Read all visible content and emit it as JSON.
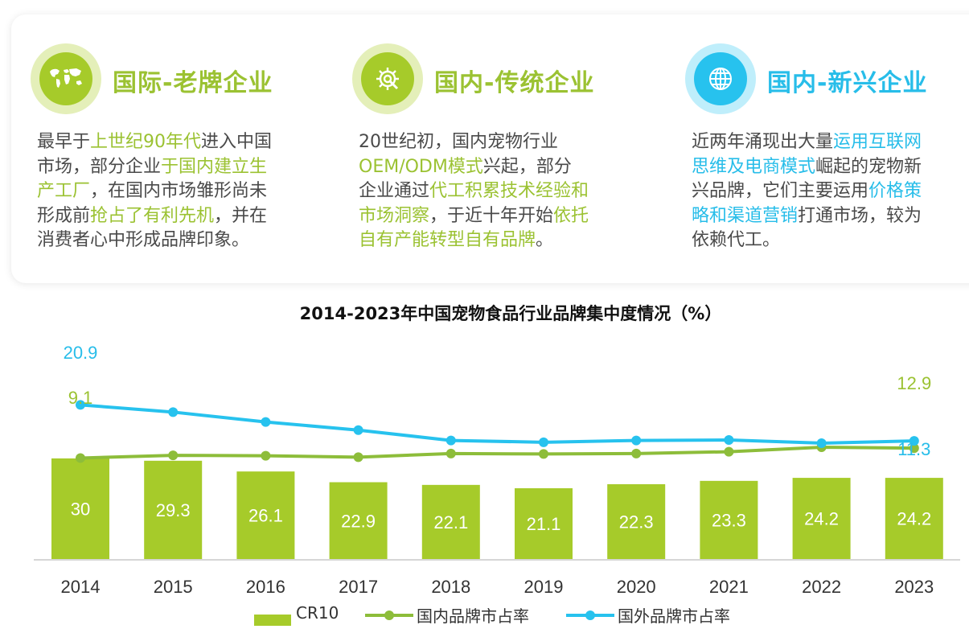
{
  "sections": [
    {
      "icon": "world-map-icon",
      "color": "#9bc232",
      "title": "国际-老牌企业",
      "lines": [
        [
          {
            "t": "最早于"
          },
          {
            "t": "上世纪90年代",
            "h": true
          },
          {
            "t": "进入中国"
          }
        ],
        [
          {
            "t": "市场，部分企业"
          },
          {
            "t": "于国内建立生",
            "h": true
          }
        ],
        [
          {
            "t": "产工厂",
            "h": true
          },
          {
            "t": "，在国内市场雏形尚未"
          }
        ],
        [
          {
            "t": "形成前"
          },
          {
            "t": "抢占了有利先机",
            "h": true
          },
          {
            "t": "，并在"
          }
        ],
        [
          {
            "t": "消费者心中形成品牌印象。"
          }
        ]
      ]
    },
    {
      "icon": "gear-tools-icon",
      "color": "#9bc232",
      "title": "国内-传统企业",
      "lines": [
        [
          {
            "t": "20世纪初，国内宠物行业"
          }
        ],
        [
          {
            "t": "OEM/ODM模式",
            "h": true
          },
          {
            "t": "兴起，部分"
          }
        ],
        [
          {
            "t": "企业通过"
          },
          {
            "t": "代工积累技术经验和",
            "h": true
          }
        ],
        [
          {
            "t": "市场洞察",
            "h": true
          },
          {
            "t": "，于近十年开始"
          },
          {
            "t": "依托",
            "h": true
          }
        ],
        [
          {
            "t": "自有产能转型自有品牌",
            "h": true
          },
          {
            "t": "。"
          }
        ]
      ]
    },
    {
      "icon": "globe-icon",
      "color": "#27bde9",
      "title": "国内-新兴企业",
      "lines": [
        [
          {
            "t": "近两年涌现出大量"
          },
          {
            "t": "运用互联网",
            "h": true
          }
        ],
        [
          {
            "t": "思维及电商模式",
            "h": true
          },
          {
            "t": "崛起的宠物新"
          }
        ],
        [
          {
            "t": "兴品牌，它们主要运用"
          },
          {
            "t": "价格策",
            "h": true
          }
        ],
        [
          {
            "t": "略和渠道营销",
            "h": true
          },
          {
            "t": "打通市场，较为"
          }
        ],
        [
          {
            "t": "依赖代工。"
          }
        ]
      ]
    }
  ],
  "chart_data": {
    "type": "bar+line",
    "title": "2014-2023年中国宠物食品行业品牌集中度情况（%）",
    "categories": [
      "2014",
      "2015",
      "2016",
      "2017",
      "2018",
      "2019",
      "2020",
      "2021",
      "2022",
      "2023"
    ],
    "series": [
      {
        "name": "CR10",
        "type": "bar",
        "color": "#a6cb2a",
        "values": [
          30,
          29.3,
          26.1,
          22.9,
          22.1,
          21.1,
          22.3,
          23.3,
          24.2,
          24.2
        ]
      },
      {
        "name": "国内品牌市占率",
        "type": "line",
        "color": "#8dbd3a",
        "values": [
          9.1,
          9.7,
          9.6,
          9.3,
          10.1,
          10.0,
          10.1,
          10.5,
          11.5,
          11.3
        ],
        "labels": {
          "0": "9.1",
          "9": "11.3"
        }
      },
      {
        "name": "国外品牌市占率",
        "type": "line",
        "color": "#27c2ee",
        "values": [
          20.9,
          19.3,
          17.1,
          15.3,
          13.0,
          12.6,
          13.0,
          13.1,
          12.4,
          12.9
        ],
        "labels": {
          "0": "20.9",
          "9": "12.9"
        }
      }
    ],
    "legend": "bottom",
    "grid": false
  }
}
